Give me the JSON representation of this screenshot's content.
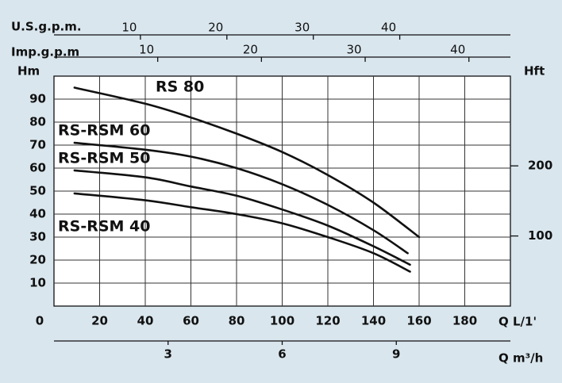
{
  "chart_data": {
    "type": "line",
    "xlabel": "Q L/1'",
    "ylabel": "Hm",
    "y2label": "Hft",
    "xlim": [
      0,
      200
    ],
    "xticks": [
      0,
      20,
      40,
      60,
      80,
      100,
      120,
      140,
      160,
      180
    ],
    "ylim": [
      0,
      100
    ],
    "yticks": [
      10,
      20,
      30,
      40,
      50,
      60,
      70,
      80,
      90
    ],
    "y2lim": [
      0,
      328
    ],
    "y2ticks": [
      100,
      200
    ],
    "grid": true,
    "top_axes": [
      {
        "label": "U.S.g.p.m.",
        "xlim": [
          0,
          52.8
        ],
        "xticks": [
          10,
          20,
          30,
          40
        ]
      },
      {
        "label": "Imp.g.p.m",
        "xlim": [
          0,
          44
        ],
        "xticks": [
          10,
          20,
          30,
          40
        ]
      }
    ],
    "bottom_axis": {
      "label": "Q m³/h",
      "xlim": [
        0,
        12
      ],
      "xticks": [
        3,
        6,
        9
      ]
    },
    "series": [
      {
        "name": "RS 80",
        "color": "#111111",
        "x": [
          9,
          40,
          60,
          80,
          100,
          120,
          140,
          160
        ],
        "values": [
          95,
          88,
          82,
          75,
          67,
          57,
          45,
          30
        ]
      },
      {
        "name": "RS-RSM 60",
        "color": "#111111",
        "x": [
          9,
          40,
          60,
          80,
          100,
          120,
          140,
          155
        ],
        "values": [
          71,
          68,
          65,
          60,
          53,
          44,
          33,
          23
        ]
      },
      {
        "name": "RS-RSM 50",
        "color": "#111111",
        "x": [
          9,
          40,
          60,
          80,
          100,
          120,
          140,
          156
        ],
        "values": [
          59,
          56,
          52,
          48,
          42,
          35,
          26,
          18
        ]
      },
      {
        "name": "RS-RSM 40",
        "color": "#111111",
        "x": [
          9,
          40,
          60,
          80,
          100,
          120,
          140,
          156
        ],
        "values": [
          49,
          46,
          43,
          40,
          36,
          30,
          23,
          15
        ]
      }
    ]
  }
}
